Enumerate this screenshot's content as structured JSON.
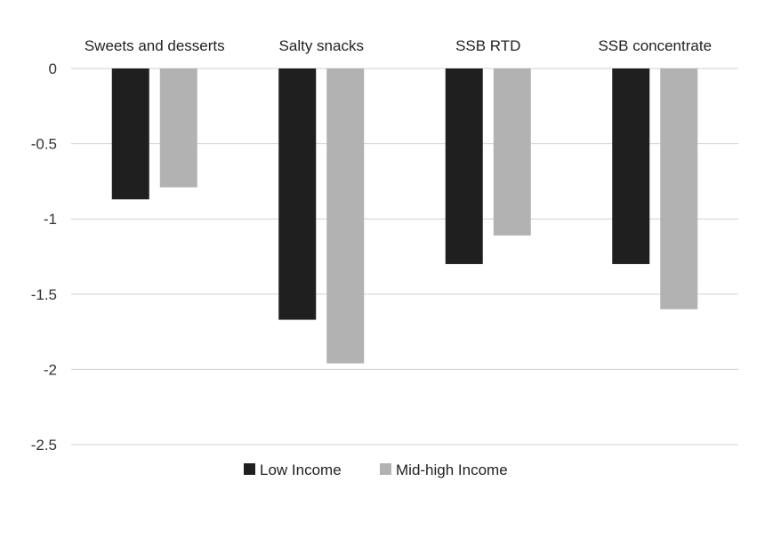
{
  "chart_data": {
    "type": "bar",
    "title": "",
    "xlabel": "",
    "ylabel": "",
    "categories": [
      "Sweets and desserts",
      "Salty snacks",
      "SSB RTD",
      "SSB concentrate"
    ],
    "series": [
      {
        "name": "Low Income",
        "color": "#1f1f1f",
        "values": [
          -0.87,
          -1.67,
          -1.3,
          -1.3
        ]
      },
      {
        "name": "Mid-high Income",
        "color": "#b2b2b2",
        "values": [
          -0.79,
          -1.96,
          -1.11,
          -1.6
        ]
      }
    ],
    "ylim": [
      -2.5,
      0
    ],
    "yticks": [
      0,
      -0.5,
      -1,
      -1.5,
      -2,
      -2.5
    ],
    "ytick_labels": [
      "0",
      "-0.5",
      "-1",
      "-1.5",
      "-2",
      "-2.5"
    ],
    "grid": true,
    "legend_position": "bottom"
  }
}
